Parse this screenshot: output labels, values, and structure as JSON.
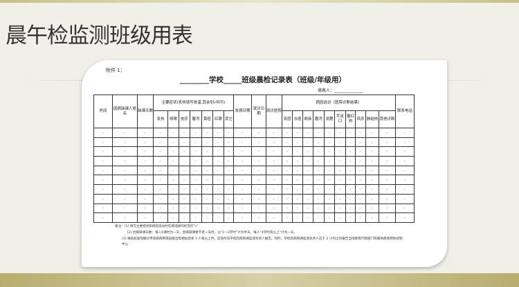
{
  "slide": {
    "title": "晨午检监测班级用表"
  },
  "doc": {
    "attachment": "附件 1：",
    "title": "________学校_____班级晨检记录表（班级/年级用）",
    "filler": "填表人：______________",
    "headers": {
      "time": "时间",
      "name": "因病缺课人姓名",
      "days": "缺课天数",
      "symptoms": "主要症状(发热填写体温,其余划√何可)",
      "onset": "发病日期",
      "visit_date": "就诊日期",
      "hospital": "就诊医院",
      "cause": "病因追访（医院诊断结果）",
      "phone": "联系电话"
    },
    "symptoms": [
      "发热",
      "咳嗽",
      "皮疹",
      "腹泻",
      "黄疸",
      "红眼",
      "其它"
    ],
    "diseases": [
      "流感",
      "水痘",
      "痢疾",
      "腹泻",
      "流腮",
      "手足口",
      "猩红热",
      "风疹",
      "肺结核",
      "其他诊断"
    ],
    "rows": 10,
    "cell_mark": "↵",
    "notes": [
      "备注：[1] 填写主要症状和病因追访时在要选择的栏内打“√”",
      "[2] 因病缺课天数：每人6课时为一天，因病缺课者不足一天时，以“1～3学时”计为半天，每人“4学时及以上”计为一天。",
      "[3] 每班如发现确诊传染病病例或班级出现相似症状 3 人或以上时，应及时向学校因病缺课监测负责人报告。同时，学校因病缺课监测负责人应于 2 小时之内报告当地教育行政部门和属地疾病预防控制中心"
    ]
  }
}
